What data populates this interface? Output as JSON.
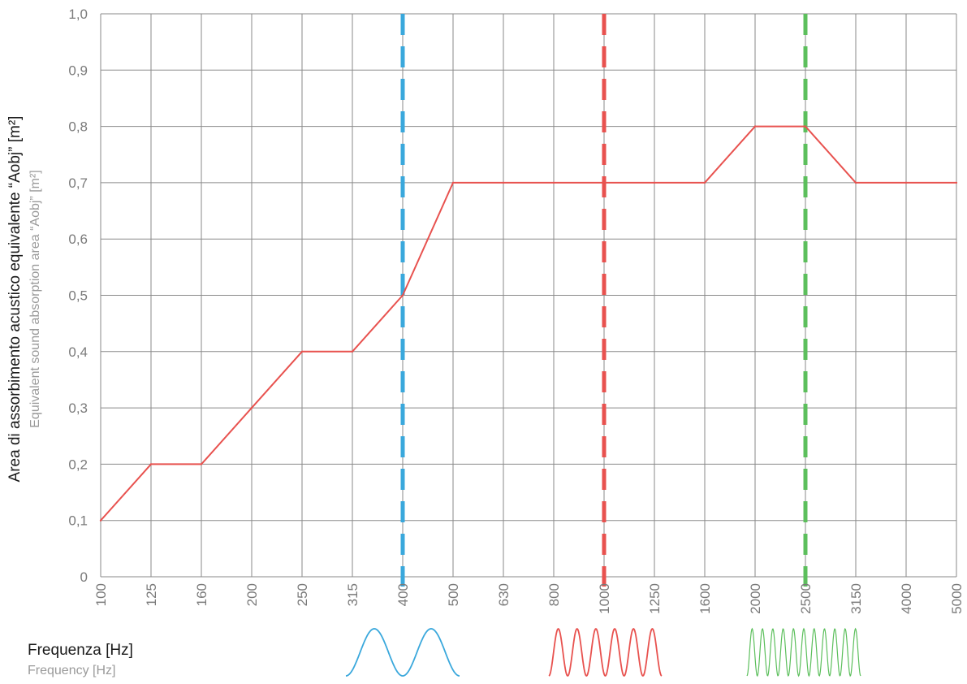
{
  "chart_data": {
    "type": "line",
    "ylabel": "Area di assorbimento acustico equivalente “Aobj” [m²]",
    "ylabel_secondary": "Equivalent sound absorption area “Aobj” [m²]",
    "xlabel": "Frequenza [Hz]",
    "xlabel_secondary": "Frequency [Hz]",
    "ylim": [
      0,
      1.0
    ],
    "y_ticks": [
      "0",
      "0,1",
      "0,2",
      "0,3",
      "0,4",
      "0,5",
      "0,6",
      "0,7",
      "0,8",
      "0,9",
      "1,0"
    ],
    "categories": [
      "100",
      "125",
      "160",
      "200",
      "250",
      "315",
      "400",
      "500",
      "630",
      "800",
      "1000",
      "1250",
      "1600",
      "2000",
      "2500",
      "3150",
      "4000",
      "5000"
    ],
    "grid": true,
    "series": [
      {
        "values": [
          0.1,
          0.2,
          0.2,
          0.3,
          0.4,
          0.4,
          0.5,
          0.7,
          0.7,
          0.7,
          0.7,
          0.7,
          0.7,
          0.8,
          0.8,
          0.7,
          0.7,
          0.7
        ],
        "color": "#e8524f"
      }
    ],
    "reference_lines": [
      {
        "x": "400",
        "color": "#3aa8dc",
        "style": "dashed"
      },
      {
        "x": "1000",
        "color": "#e8524f",
        "style": "dashed"
      },
      {
        "x": "2500",
        "color": "#5cbf5c",
        "style": "dashed"
      }
    ],
    "wave_icons": [
      {
        "name": "low-frequency-wave-icon",
        "color": "#3aa8dc",
        "cycles": 2
      },
      {
        "name": "mid-frequency-wave-icon",
        "color": "#e8524f",
        "cycles": 6
      },
      {
        "name": "high-frequency-wave-icon",
        "color": "#5cbf5c",
        "cycles": 11
      }
    ]
  }
}
